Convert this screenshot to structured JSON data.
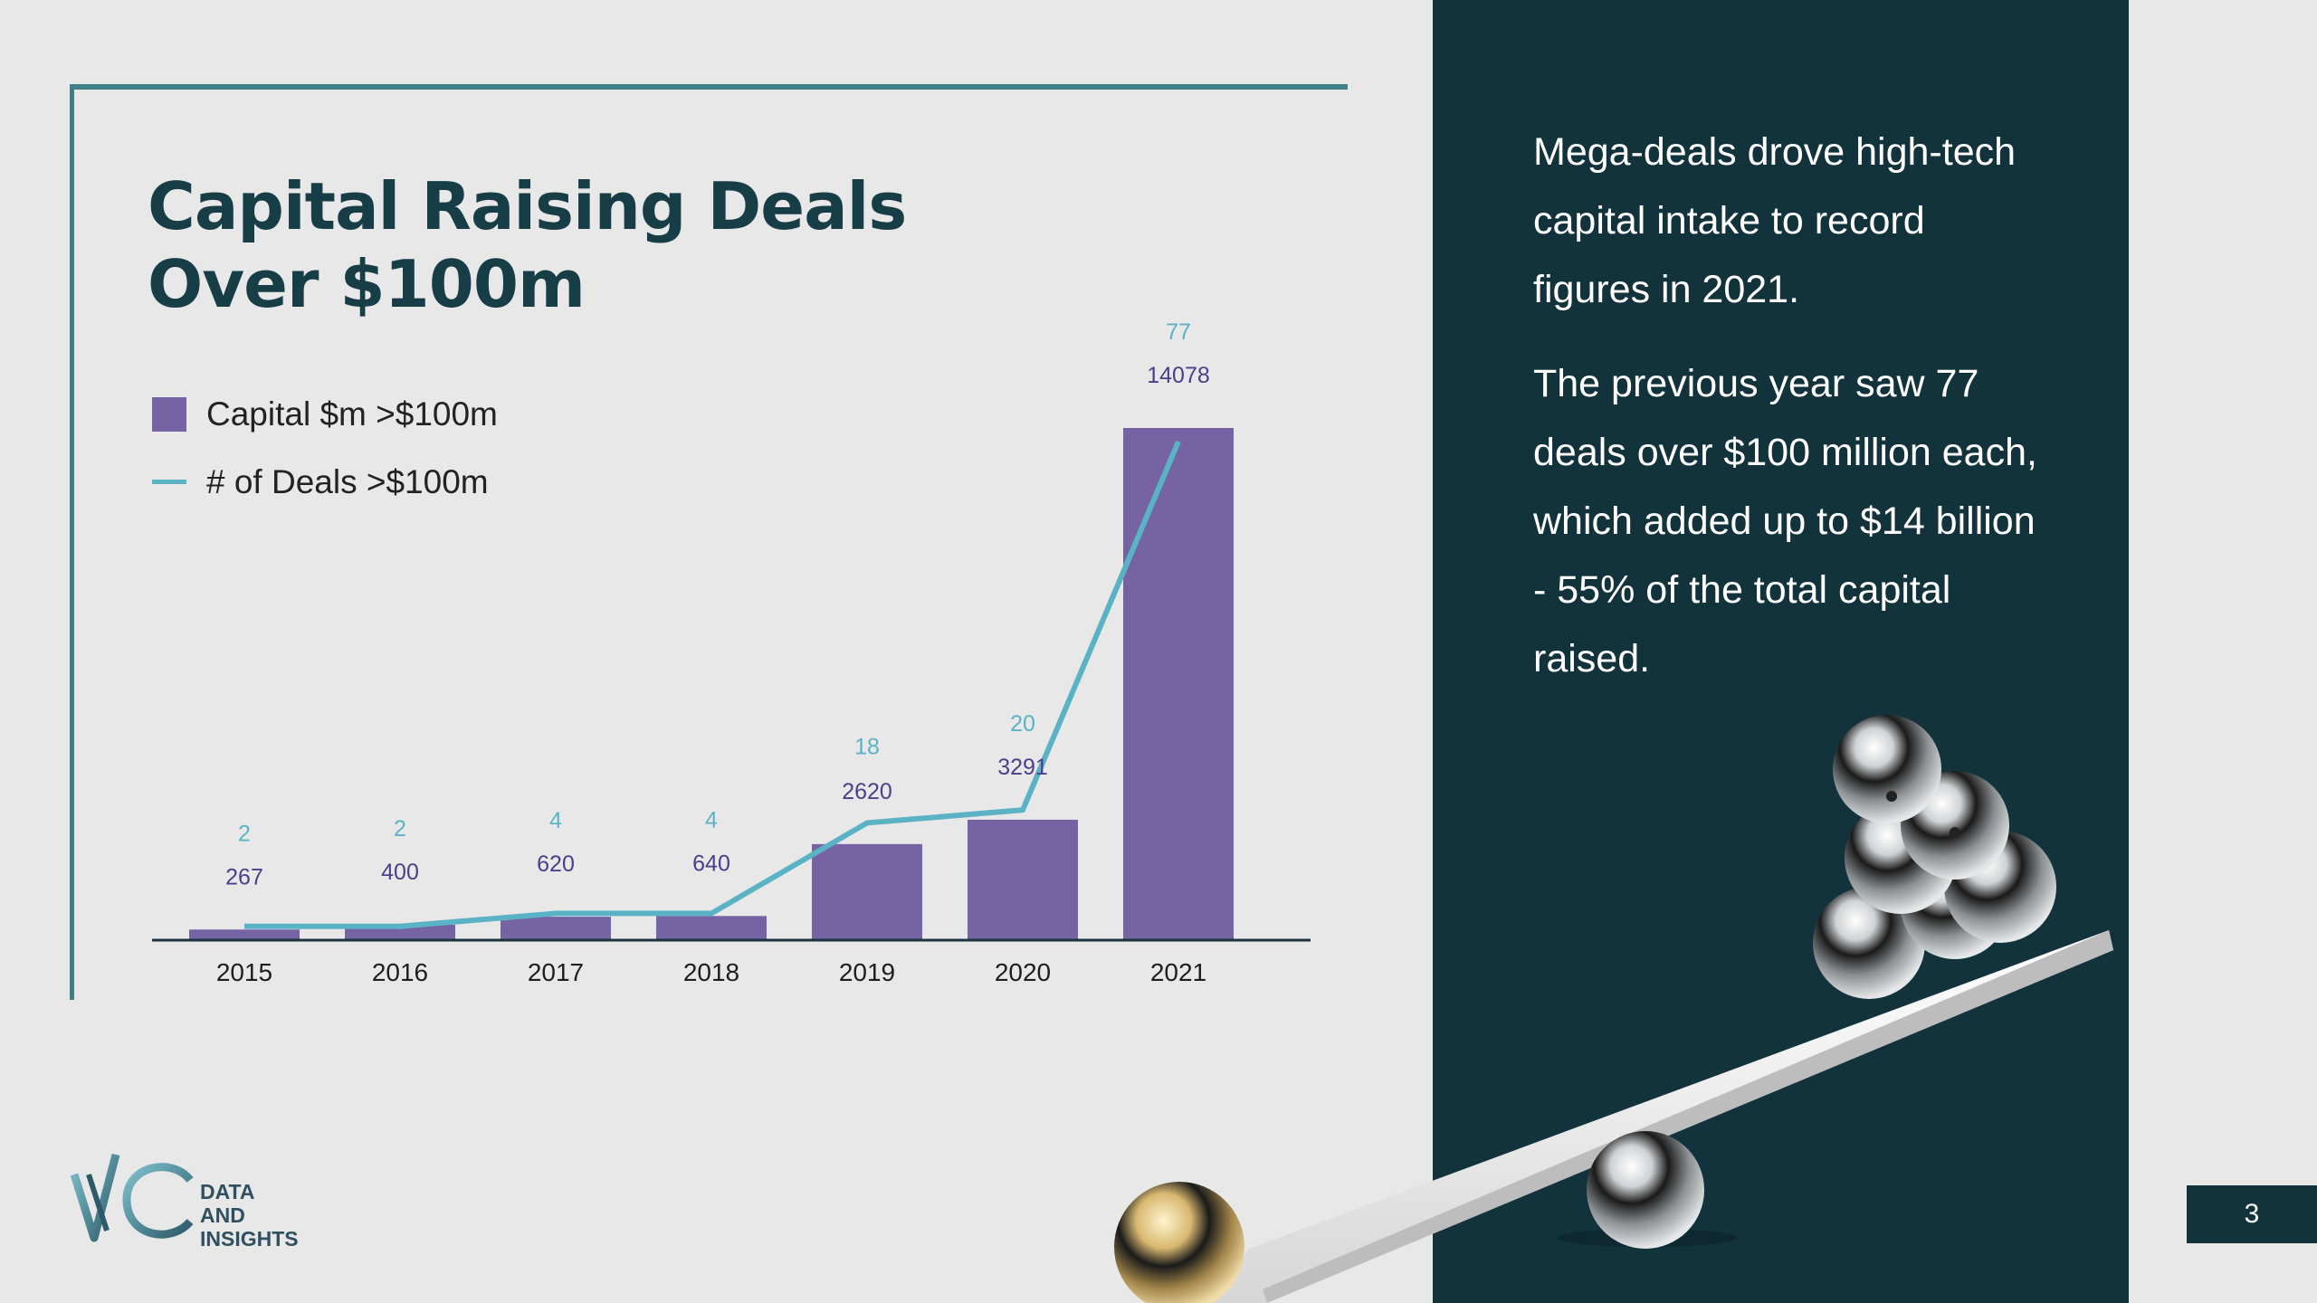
{
  "slide": {
    "title_line1": "Capital Raising Deals",
    "title_line2": "Over $100m",
    "page_number": "3"
  },
  "legend": {
    "capital_label": "Capital $m >$100m",
    "deals_label": "# of Deals >$100m"
  },
  "panel": {
    "paragraph1": "Mega-deals drove high-tech capital intake to record figures in 2021.",
    "paragraph2": "The previous year saw 77 deals over $100 million each, which added up to $14 billion - 55% of the total capital raised."
  },
  "logo": {
    "line1": "DATA",
    "line2": "AND",
    "line3": "INSIGHTS"
  },
  "colors": {
    "bar": "#7663a4",
    "line": "#5ab3c5",
    "bar_label": "#4e3d8a",
    "line_label": "#5ab3c5",
    "panel": "#12333c",
    "frame": "#3f7f86"
  },
  "chart_data": {
    "type": "bar",
    "categories": [
      "2015",
      "2016",
      "2017",
      "2018",
      "2019",
      "2020",
      "2021"
    ],
    "series": [
      {
        "name": "Capital $m >$100m",
        "type": "bar",
        "values": [
          267,
          400,
          620,
          640,
          2620,
          3291,
          14078
        ]
      },
      {
        "name": "# of Deals >$100m",
        "type": "line",
        "values": [
          2,
          2,
          4,
          4,
          18,
          20,
          77
        ]
      }
    ],
    "ylim_bar": [
      0,
      14078
    ],
    "ylim_line": [
      0,
      77
    ],
    "legend_position": "top-left",
    "grid": false
  }
}
